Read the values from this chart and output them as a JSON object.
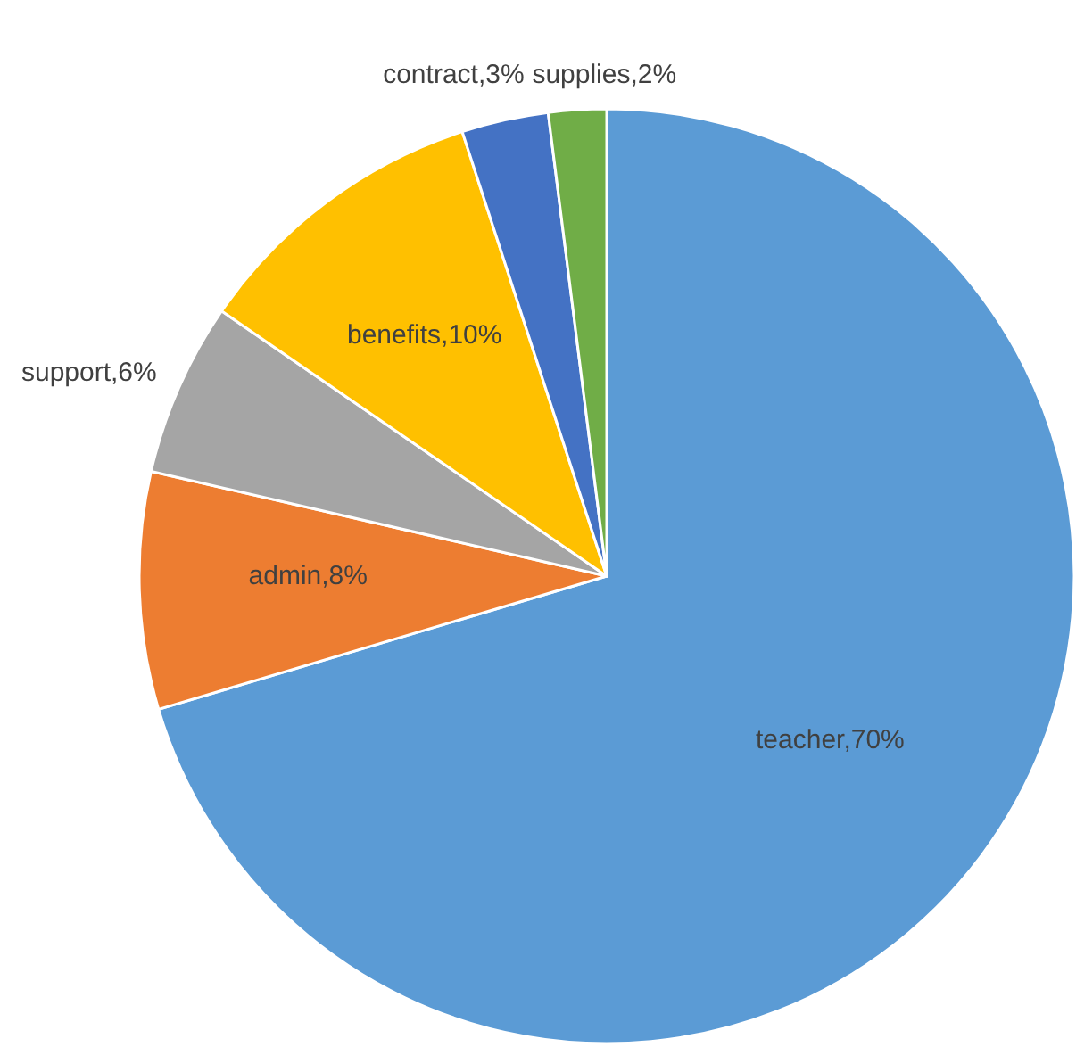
{
  "chart_data": {
    "type": "pie",
    "categories": [
      "teacher",
      "admin",
      "support",
      "benefits",
      "contract",
      "supplies"
    ],
    "values": [
      70.4,
      8.2,
      6,
      10.4,
      3,
      2
    ],
    "colors": [
      "#5b9bd5",
      "#ed7d31",
      "#a5a5a5",
      "#ffc000",
      "#4472c4",
      "#70ad47"
    ],
    "value_labels": [
      "70%",
      "8%",
      "6%",
      "10%",
      "3%",
      "2%"
    ]
  }
}
